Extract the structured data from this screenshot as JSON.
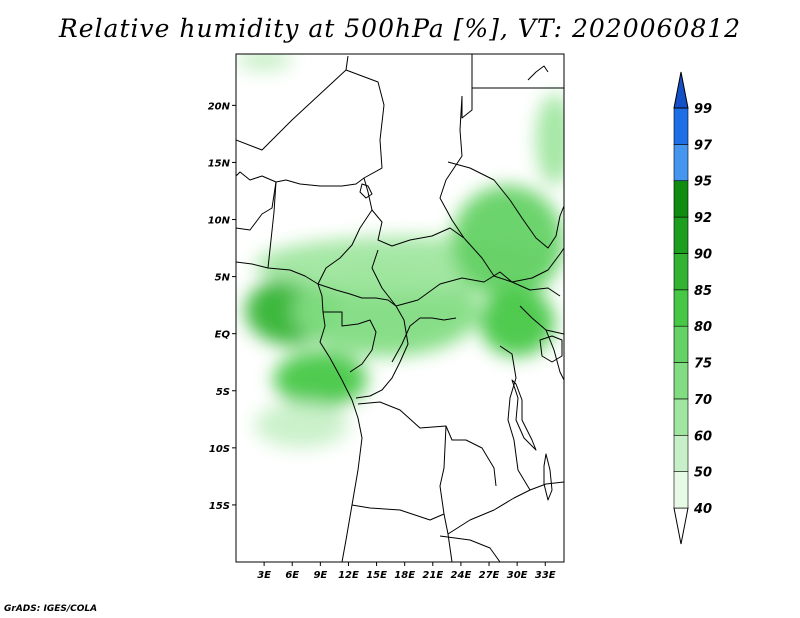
{
  "title": "Relative humidity at 500hPa [%], VT: 2020060812",
  "credit": "GrADS: IGES/COLA",
  "axes": {
    "lat_labels": [
      "20N",
      "15N",
      "10N",
      "5N",
      "EQ",
      "5S",
      "10S",
      "15S"
    ],
    "lat_values": [
      20,
      15,
      10,
      5,
      0,
      -5,
      -10,
      -15
    ],
    "lon_labels": [
      "3E",
      "6E",
      "9E",
      "12E",
      "15E",
      "18E",
      "21E",
      "24E",
      "27E",
      "30E",
      "33E"
    ],
    "lon_values": [
      3,
      6,
      9,
      12,
      15,
      18,
      21,
      24,
      27,
      30,
      33
    ],
    "lon_range": [
      0,
      35
    ],
    "lat_range": [
      -20,
      24.5
    ]
  },
  "colorbar": {
    "levels": [
      "40",
      "50",
      "60",
      "70",
      "75",
      "80",
      "85",
      "90",
      "92",
      "95",
      "97",
      "99"
    ],
    "colors": [
      "#ffffff",
      "#e6fae6",
      "#c8f0c8",
      "#a0e6a0",
      "#82dc82",
      "#64d264",
      "#46c846",
      "#32b432",
      "#1e9e1e",
      "#108c10",
      "#4696f0",
      "#1e6ee6",
      "#1450c8"
    ]
  },
  "humid_regions": [
    {
      "name": "west-equatorial-core",
      "lon": 6,
      "lat": 2,
      "rx": 5,
      "ry": 3,
      "level": 85
    },
    {
      "name": "gabon-coast",
      "lon": 9,
      "lat": -4,
      "rx": 5,
      "ry": 2.5,
      "level": 80
    },
    {
      "name": "congo-basin",
      "lon": 16,
      "lat": 2,
      "rx": 10,
      "ry": 4,
      "level": 70
    },
    {
      "name": "sahel-band",
      "lon": 18,
      "lat": 6,
      "rx": 16,
      "ry": 2.5,
      "level": 60
    },
    {
      "name": "east-african-band",
      "lon": 29,
      "lat": 8,
      "rx": 6,
      "ry": 5,
      "level": 75
    },
    {
      "name": "lake-victoria-region",
      "lon": 30,
      "lat": 1,
      "rx": 4,
      "ry": 3,
      "level": 80
    },
    {
      "name": "red-sea-coast",
      "lon": 34,
      "lat": 17,
      "rx": 2,
      "ry": 4,
      "level": 60
    },
    {
      "name": "southwest-tail",
      "lon": 7,
      "lat": -8,
      "rx": 5,
      "ry": 2,
      "level": 50
    },
    {
      "name": "north-sahara-patch",
      "lon": 3,
      "lat": 24,
      "rx": 3,
      "ry": 1,
      "level": 50
    }
  ],
  "colors": {
    "frame": "#000000",
    "border": "#000000",
    "background": "#ffffff"
  }
}
